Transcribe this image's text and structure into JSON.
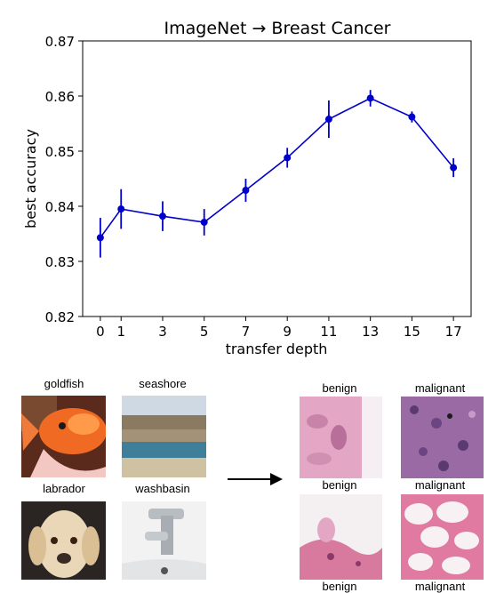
{
  "chart_data": {
    "type": "line",
    "title": "ImageNet → Breast Cancer",
    "xlabel": "transfer depth",
    "ylabel": "best accuracy",
    "ylim": [
      0.82,
      0.87
    ],
    "yticks": [
      "0.82",
      "0.83",
      "0.84",
      "0.85",
      "0.86",
      "0.87"
    ],
    "xticks": [
      "0",
      "1",
      "3",
      "5",
      "7",
      "9",
      "11",
      "13",
      "15",
      "17"
    ],
    "grid": false,
    "color": "#0000cc",
    "series": [
      {
        "x": [
          0,
          1,
          3,
          5,
          7,
          9,
          11,
          13,
          15,
          17
        ],
        "y": [
          0.8343,
          0.8395,
          0.8382,
          0.8371,
          0.8429,
          0.8488,
          0.8558,
          0.8596,
          0.8562,
          0.847
        ],
        "err": [
          0.0036,
          0.0036,
          0.0027,
          0.0024,
          0.0021,
          0.0018,
          0.0034,
          0.0015,
          0.001,
          0.0017
        ]
      }
    ]
  },
  "figure": {
    "source_labels": [
      "goldfish",
      "seashore",
      "labrador",
      "washbasin"
    ],
    "target_labels": [
      "benign",
      "malignant",
      "benign",
      "malignant"
    ],
    "target_bottom_labels": [
      "benign",
      "malignant"
    ],
    "images": [
      "goldfish-photo",
      "seashore-photo",
      "labrador-photo",
      "washbasin-photo",
      "benign-histology",
      "malignant-histology",
      "benign-histology",
      "malignant-histology"
    ]
  }
}
